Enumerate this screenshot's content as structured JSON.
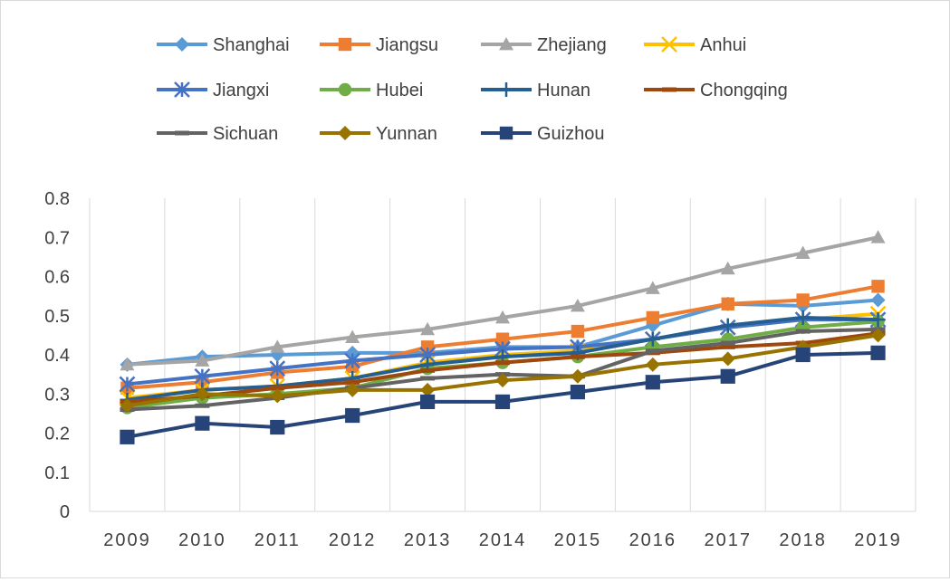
{
  "chart_data": {
    "type": "line",
    "title": "",
    "xlabel": "",
    "ylabel": "",
    "categories": [
      "2009",
      "2010",
      "2011",
      "2012",
      "2013",
      "2014",
      "2015",
      "2016",
      "2017",
      "2018",
      "2019"
    ],
    "ylim": [
      0,
      0.8
    ],
    "yticks": [
      "0",
      "0.1",
      "0.2",
      "0.3",
      "0.4",
      "0.5",
      "0.6",
      "0.7",
      "0.8"
    ],
    "grid": "vertical",
    "legend_position": "top",
    "series": [
      {
        "name": "Shanghai",
        "color": "#5B9BD5",
        "marker": "diamond",
        "values": [
          0.375,
          0.395,
          0.4,
          0.405,
          0.405,
          0.42,
          0.42,
          0.475,
          0.53,
          0.525,
          0.54
        ]
      },
      {
        "name": "Jiangsu",
        "color": "#ED7D31",
        "marker": "square",
        "values": [
          0.315,
          0.33,
          0.355,
          0.37,
          0.42,
          0.44,
          0.46,
          0.495,
          0.53,
          0.54,
          0.575
        ]
      },
      {
        "name": "Zhejiang",
        "color": "#A5A5A5",
        "marker": "triangle",
        "values": [
          0.375,
          0.385,
          0.42,
          0.445,
          0.465,
          0.495,
          0.525,
          0.57,
          0.62,
          0.66,
          0.7
        ]
      },
      {
        "name": "Anhui",
        "color": "#FFC000",
        "marker": "x",
        "values": [
          0.29,
          0.31,
          0.32,
          0.34,
          0.38,
          0.4,
          0.41,
          0.44,
          0.47,
          0.49,
          0.505
        ]
      },
      {
        "name": "Jiangxi",
        "color": "#4472C4",
        "marker": "asterisk",
        "values": [
          0.325,
          0.345,
          0.365,
          0.385,
          0.4,
          0.415,
          0.42,
          0.44,
          0.47,
          0.49,
          0.49
        ]
      },
      {
        "name": "Hubei",
        "color": "#70AD47",
        "marker": "circle",
        "values": [
          0.265,
          0.29,
          0.3,
          0.315,
          0.365,
          0.38,
          0.395,
          0.42,
          0.44,
          0.47,
          0.485
        ]
      },
      {
        "name": "Hunan",
        "color": "#255E91",
        "marker": "plus",
        "values": [
          0.285,
          0.31,
          0.32,
          0.34,
          0.375,
          0.395,
          0.405,
          0.44,
          0.475,
          0.495,
          0.49
        ]
      },
      {
        "name": "Chongqing",
        "color": "#9E480E",
        "marker": "dash",
        "values": [
          0.28,
          0.295,
          0.315,
          0.33,
          0.36,
          0.38,
          0.395,
          0.405,
          0.42,
          0.43,
          0.455
        ]
      },
      {
        "name": "Sichuan",
        "color": "#636363",
        "marker": "dash",
        "values": [
          0.26,
          0.27,
          0.29,
          0.315,
          0.34,
          0.35,
          0.345,
          0.41,
          0.43,
          0.46,
          0.465
        ]
      },
      {
        "name": "Yunnan",
        "color": "#997300",
        "marker": "diamond",
        "values": [
          0.27,
          0.3,
          0.295,
          0.31,
          0.31,
          0.335,
          0.345,
          0.375,
          0.39,
          0.42,
          0.45
        ]
      },
      {
        "name": "Guizhou",
        "color": "#264478",
        "marker": "square",
        "values": [
          0.19,
          0.225,
          0.215,
          0.245,
          0.28,
          0.28,
          0.305,
          0.33,
          0.345,
          0.4,
          0.405
        ]
      }
    ]
  }
}
